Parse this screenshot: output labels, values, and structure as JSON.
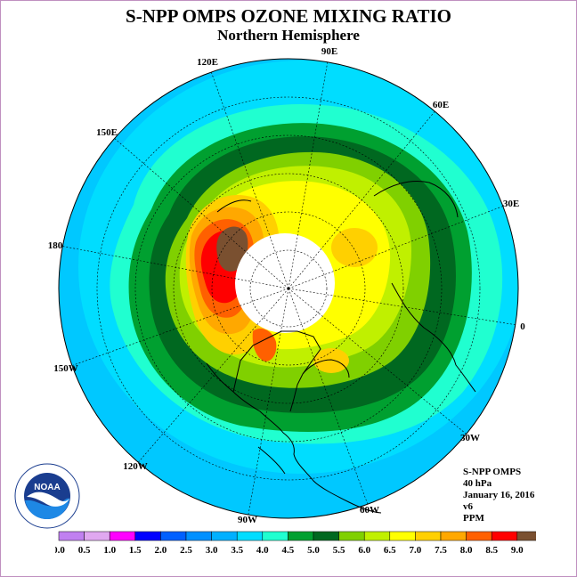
{
  "header": {
    "title": "S-NPP OMPS OZONE MIXING RATIO",
    "subtitle": "Northern Hemisphere"
  },
  "info": {
    "product": "S-NPP OMPS",
    "level": "40 hPa",
    "date": "January 16, 2016",
    "version": "v6",
    "units": "PPM"
  },
  "longitude_labels": [
    "90E",
    "60E",
    "30E",
    "0",
    "30W",
    "60W",
    "90W",
    "120W",
    "150W",
    "180",
    "150E",
    "120E"
  ],
  "logo": {
    "text": "NOAA",
    "ring_text": "NATIONAL OCEANIC AND ATMOSPHERIC ADMINISTRATION · U.S. DEPARTMENT OF COMMERCE"
  },
  "colorbar": {
    "ticks": [
      "0.0",
      "0.5",
      "1.0",
      "1.5",
      "2.0",
      "2.5",
      "3.0",
      "3.5",
      "4.0",
      "4.5",
      "5.0",
      "5.5",
      "6.0",
      "6.5",
      "7.0",
      "7.5",
      "8.0",
      "8.5",
      "9.0"
    ],
    "colors": [
      "#c080f0",
      "#e0a8f0",
      "#ff00ff",
      "#0000ff",
      "#0060ff",
      "#0090ff",
      "#00b0ff",
      "#00ddff",
      "#20ffd0",
      "#00a030",
      "#006820",
      "#80d000",
      "#c0f000",
      "#ffff00",
      "#ffd000",
      "#ffa800",
      "#ff6000",
      "#ff0000",
      "#7a5030"
    ]
  },
  "map": {
    "colors": {
      "band_3_0": "#00c8ff",
      "band_3_5": "#00ddff",
      "band_4_0": "#20ffd0",
      "band_4_5": "#00a030",
      "band_5_0": "#006820",
      "band_5_5": "#80d000",
      "band_6_0": "#c0f000",
      "band_6_5": "#ffff00",
      "band_7_0": "#ffd000",
      "band_7_5": "#ffa800",
      "band_8_0": "#ff6000",
      "band_8_5": "#ff0000",
      "band_9_0": "#7a5030",
      "missing": "#ffffff"
    }
  }
}
